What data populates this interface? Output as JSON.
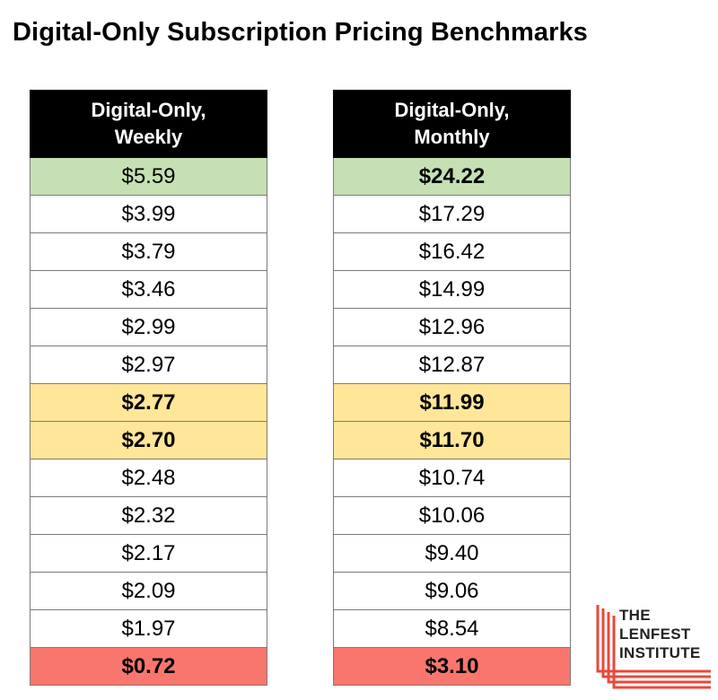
{
  "title": "Digital-Only Subscription Pricing Benchmarks",
  "chart_data": {
    "type": "table",
    "title": "Digital-Only Subscription Pricing Benchmarks",
    "columns": [
      {
        "header_line1": "Digital-Only,",
        "header_line2": "Weekly",
        "rows": [
          {
            "value": "$5.59",
            "bold": false,
            "highlight": "green"
          },
          {
            "value": "$3.99",
            "bold": false,
            "highlight": "none"
          },
          {
            "value": "$3.79",
            "bold": false,
            "highlight": "none"
          },
          {
            "value": "$3.46",
            "bold": false,
            "highlight": "none"
          },
          {
            "value": "$2.99",
            "bold": false,
            "highlight": "none"
          },
          {
            "value": "$2.97",
            "bold": false,
            "highlight": "none"
          },
          {
            "value": "$2.77",
            "bold": true,
            "highlight": "yellow"
          },
          {
            "value": "$2.70",
            "bold": true,
            "highlight": "yellow"
          },
          {
            "value": "$2.48",
            "bold": false,
            "highlight": "none"
          },
          {
            "value": "$2.32",
            "bold": false,
            "highlight": "none"
          },
          {
            "value": "$2.17",
            "bold": false,
            "highlight": "none"
          },
          {
            "value": "$2.09",
            "bold": false,
            "highlight": "none"
          },
          {
            "value": "$1.97",
            "bold": false,
            "highlight": "none"
          },
          {
            "value": "$0.72",
            "bold": true,
            "highlight": "red"
          }
        ]
      },
      {
        "header_line1": "Digital-Only,",
        "header_line2": "Monthly",
        "rows": [
          {
            "value": "$24.22",
            "bold": true,
            "highlight": "green"
          },
          {
            "value": "$17.29",
            "bold": false,
            "highlight": "none"
          },
          {
            "value": "$16.42",
            "bold": false,
            "highlight": "none"
          },
          {
            "value": "$14.99",
            "bold": false,
            "highlight": "none"
          },
          {
            "value": "$12.96",
            "bold": false,
            "highlight": "none"
          },
          {
            "value": "$12.87",
            "bold": false,
            "highlight": "none"
          },
          {
            "value": "$11.99",
            "bold": true,
            "highlight": "yellow"
          },
          {
            "value": "$11.70",
            "bold": true,
            "highlight": "yellow"
          },
          {
            "value": "$10.74",
            "bold": false,
            "highlight": "none"
          },
          {
            "value": "$10.06",
            "bold": false,
            "highlight": "none"
          },
          {
            "value": "$9.40",
            "bold": false,
            "highlight": "none"
          },
          {
            "value": "$9.06",
            "bold": false,
            "highlight": "none"
          },
          {
            "value": "$8.54",
            "bold": false,
            "highlight": "none"
          },
          {
            "value": "$3.10",
            "bold": true,
            "highlight": "red"
          }
        ]
      }
    ]
  },
  "colors": {
    "green": "#c6e0b4",
    "yellow": "#ffe699",
    "red": "#f8766d",
    "none": "#ffffff",
    "logo_red": "#e8493a"
  },
  "logo": {
    "line1": "THE",
    "line2": "LENFEST",
    "line3": "INSTITUTE"
  }
}
